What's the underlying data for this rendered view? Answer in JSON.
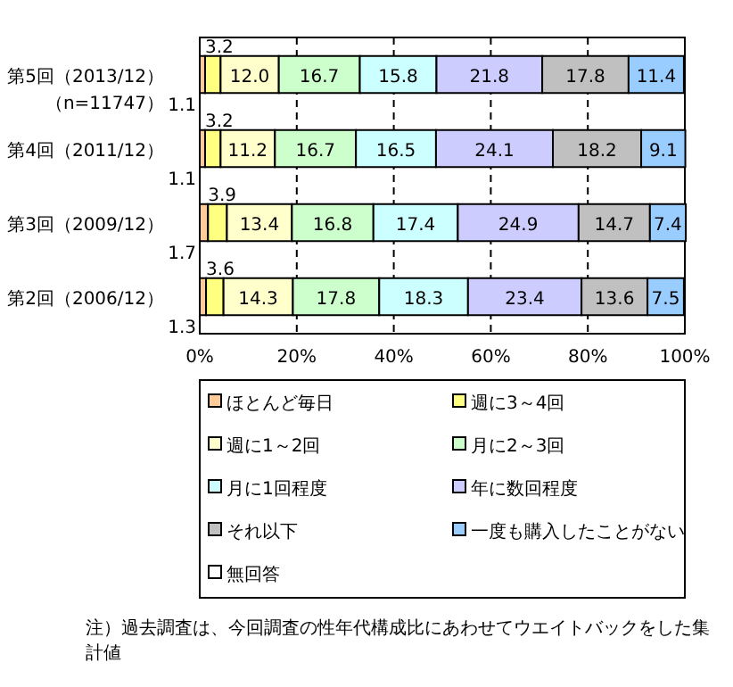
{
  "chart_data": {
    "type": "bar",
    "orientation": "horizontal",
    "stacked": true,
    "grid": "x",
    "legend": "bottom",
    "categories": [
      "第5回（2013/12）（n=11747）",
      "第4回（2011/12）",
      "第3回（2009/12）",
      "第2回（2006/12）"
    ],
    "xlim": [
      0,
      100
    ],
    "xticks": [
      {
        "value": 0,
        "label": "0%"
      },
      {
        "value": 20,
        "label": "20%"
      },
      {
        "value": 40,
        "label": "40%"
      },
      {
        "value": 60,
        "label": "60%"
      },
      {
        "value": 80,
        "label": "80%"
      },
      {
        "value": 100,
        "label": "100%"
      }
    ],
    "series": [
      {
        "name": "ほとんど毎日",
        "color": "#ffcc99",
        "values": [
          1.1,
          1.1,
          1.7,
          1.3
        ],
        "value_labels": [
          "1.1",
          "1.1",
          "1.7",
          "1.3"
        ]
      },
      {
        "name": "週に3～4回",
        "color": "#ffff80",
        "values": [
          3.2,
          3.2,
          3.9,
          3.6
        ],
        "value_labels": [
          "3.2",
          "3.2",
          "3.9",
          "3.6"
        ]
      },
      {
        "name": "週に1～2回",
        "color": "#ffffcc",
        "values": [
          12.0,
          11.2,
          13.4,
          14.3
        ],
        "value_labels": [
          "12.0",
          "11.2",
          "13.4",
          "14.3"
        ]
      },
      {
        "name": "月に2～3回",
        "color": "#ccffcc",
        "values": [
          16.7,
          16.7,
          16.8,
          17.8
        ],
        "value_labels": [
          "16.7",
          "16.7",
          "16.8",
          "17.8"
        ]
      },
      {
        "name": "月に1回程度",
        "color": "#ccffff",
        "values": [
          15.8,
          16.5,
          17.4,
          18.3
        ],
        "value_labels": [
          "15.8",
          "16.5",
          "17.4",
          "18.3"
        ]
      },
      {
        "name": "年に数回程度",
        "color": "#ccccff",
        "values": [
          21.8,
          24.1,
          24.9,
          23.4
        ],
        "value_labels": [
          "21.8",
          "24.1",
          "24.9",
          "23.4"
        ]
      },
      {
        "name": "それ以下",
        "color": "#c0c0c0",
        "values": [
          17.8,
          18.2,
          14.7,
          13.6
        ],
        "value_labels": [
          "17.8",
          "18.2",
          "14.7",
          "13.6"
        ]
      },
      {
        "name": "一度も購入したことがない",
        "color": "#99ccff",
        "values": [
          11.4,
          9.1,
          7.4,
          7.5
        ],
        "value_labels": [
          "11.4",
          "9.1",
          "7.4",
          "7.5"
        ]
      },
      {
        "name": "無回答",
        "color": "#ffffff",
        "values": [
          null,
          null,
          null,
          null
        ]
      }
    ],
    "annotations": [
      "注）過去調査は、今回調査の性年代構成比にあわせてウエイトバックをした集計値"
    ]
  }
}
